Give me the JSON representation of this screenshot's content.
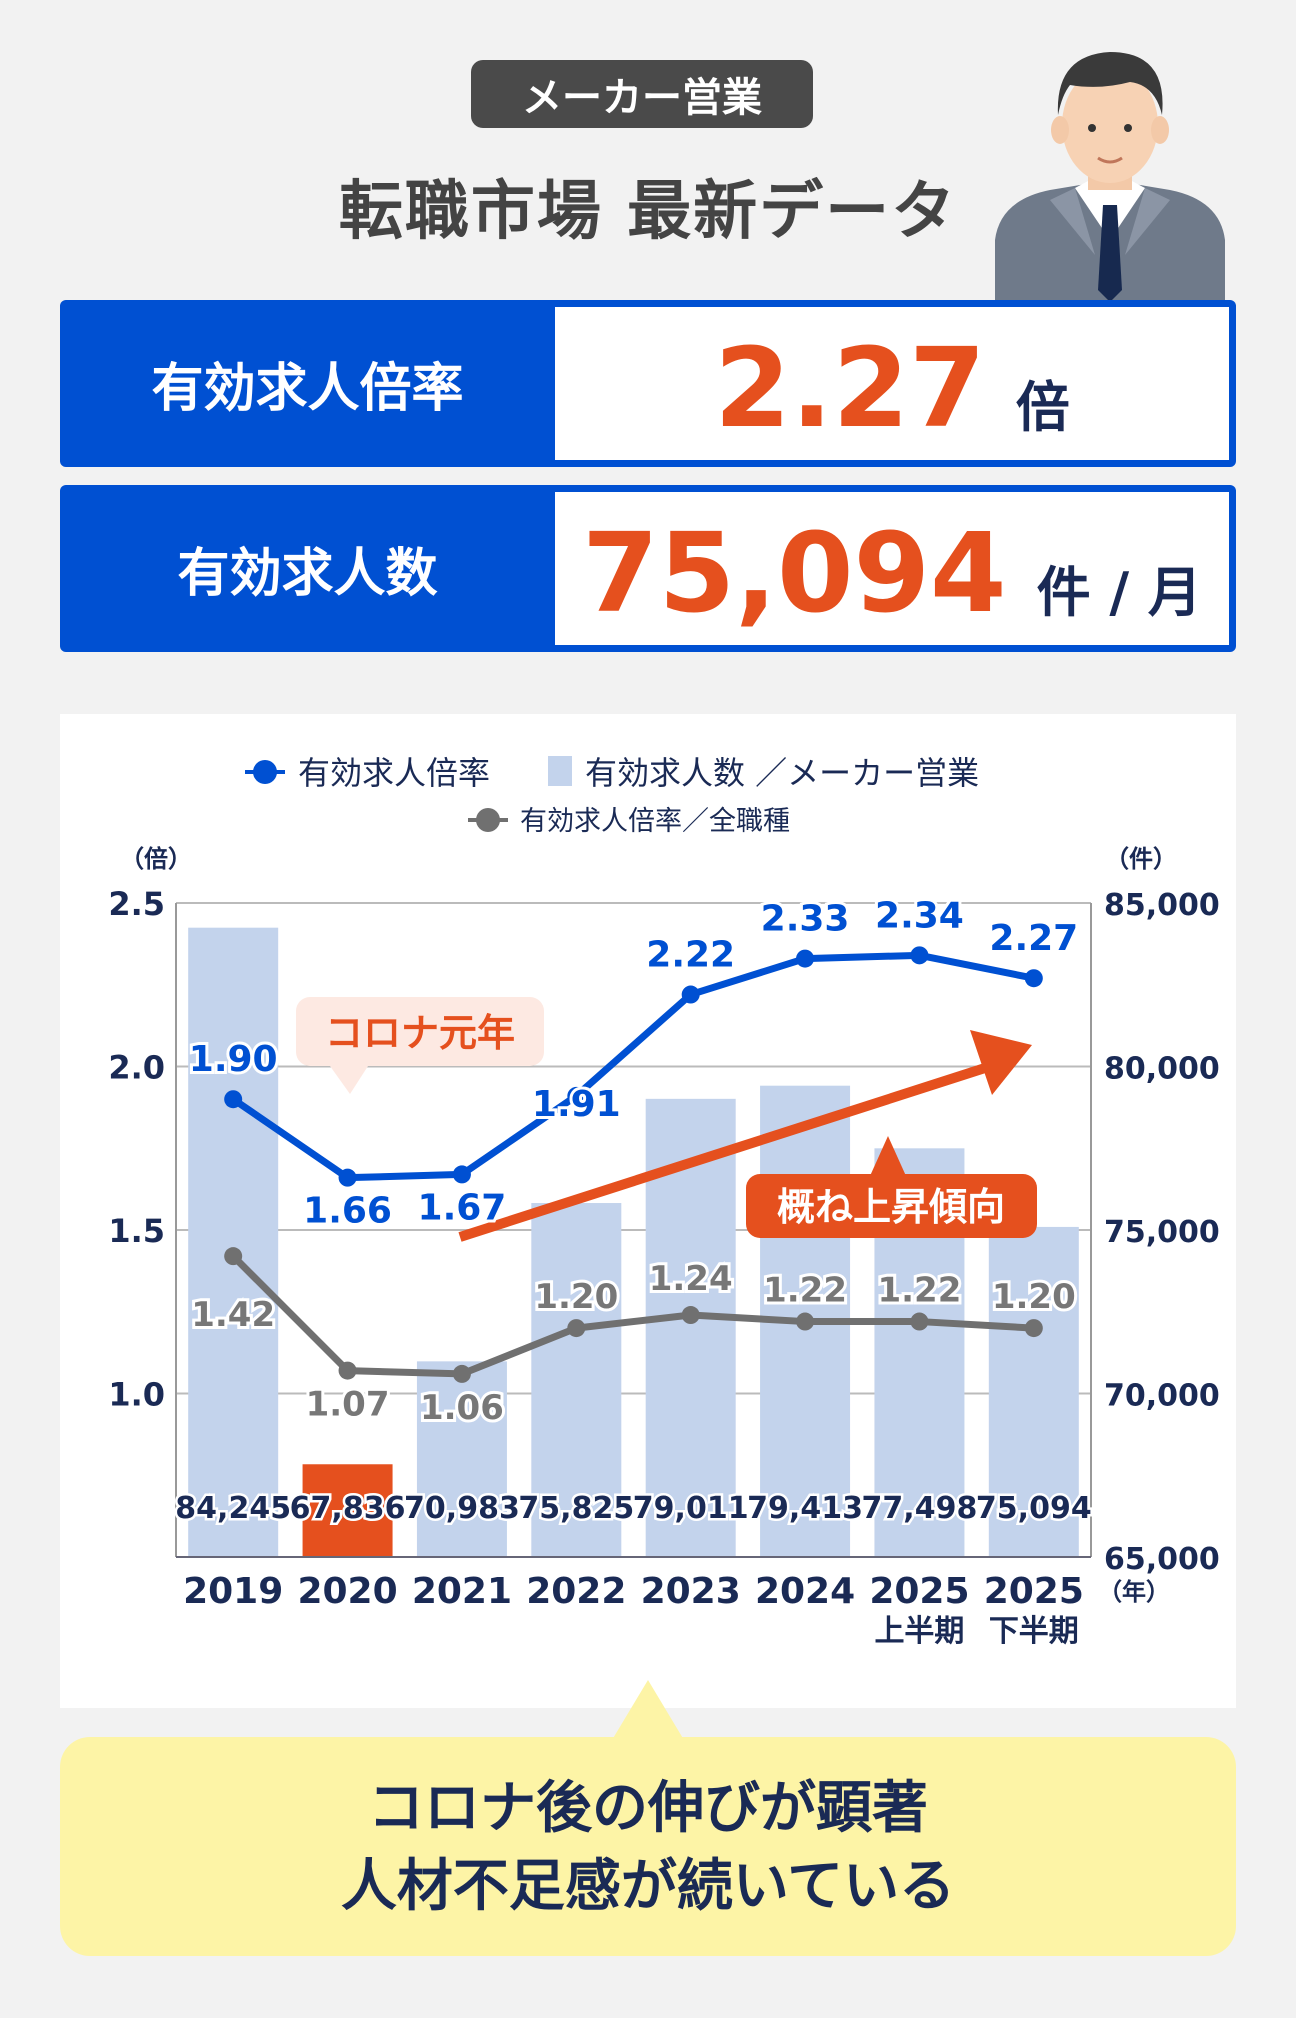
{
  "header": {
    "tag": "メーカー営業",
    "title": "転職市場 最新データ"
  },
  "kpis": [
    {
      "label": "有効求人倍率",
      "value": "2.27",
      "unit": "倍"
    },
    {
      "label": "有効求人数",
      "value": "75,094",
      "unit": "件 / 月"
    }
  ],
  "colors": {
    "blue": "#0050d2",
    "orange": "#e5501e",
    "bar": "#c3d3ec",
    "gray": "#707070",
    "navy": "#1a2a55",
    "yellow": "#fdf4a6"
  },
  "chart_data": {
    "type": "bar+line",
    "categories": [
      "2019",
      "2020",
      "2021",
      "2022",
      "2023",
      "2024",
      "2025",
      "2025"
    ],
    "category_sublabels": [
      "",
      "",
      "",
      "",
      "",
      "",
      "上半期",
      "下半期"
    ],
    "x_unit": "（年）",
    "legend": [
      "有効求人倍率",
      "有効求人数 ／メーカー営業",
      "有効求人倍率／全職種"
    ],
    "legend_placement": "top-center",
    "left_axis": {
      "unit": "（倍）",
      "range": [
        0.5,
        2.5
      ],
      "ticks": [
        "2.5",
        "2.0",
        "1.5",
        "1.0"
      ]
    },
    "right_axis": {
      "unit": "（件）",
      "range": [
        65000,
        85000
      ],
      "ticks": [
        "85,000",
        "80,000",
        "75,000",
        "70,000",
        "65,000"
      ]
    },
    "grid": true,
    "series": [
      {
        "name": "有効求人数 ／メーカー営業",
        "type": "bar",
        "axis": "right",
        "values": [
          84245,
          67836,
          70983,
          75825,
          79011,
          79413,
          77498,
          75094
        ],
        "labels": [
          "84,245",
          "67,836",
          "70,983",
          "75,825",
          "79,011",
          "79,413",
          "77,498",
          "75,094"
        ],
        "highlight_index": 1
      },
      {
        "name": "有効求人倍率",
        "type": "line",
        "axis": "left",
        "values": [
          1.9,
          1.66,
          1.67,
          1.91,
          2.22,
          2.33,
          2.34,
          2.27
        ],
        "labels": [
          "1.90",
          "1.66",
          "1.67",
          "1.91",
          "2.22",
          "2.33",
          "2.34",
          "2.27"
        ]
      },
      {
        "name": "有効求人倍率／全職種",
        "type": "line",
        "axis": "left",
        "values": [
          1.42,
          1.07,
          1.06,
          1.2,
          1.24,
          1.22,
          1.22,
          1.2
        ],
        "labels": [
          "1.42",
          "1.07",
          "1.06",
          "1.20",
          "1.24",
          "1.22",
          "1.22",
          "1.20"
        ]
      }
    ],
    "annotations": [
      "コロナ元年",
      "概ね上昇傾向"
    ]
  },
  "footer": {
    "line1": "コロナ後の伸びが顕著",
    "line2": "人材不足感が続いている"
  }
}
